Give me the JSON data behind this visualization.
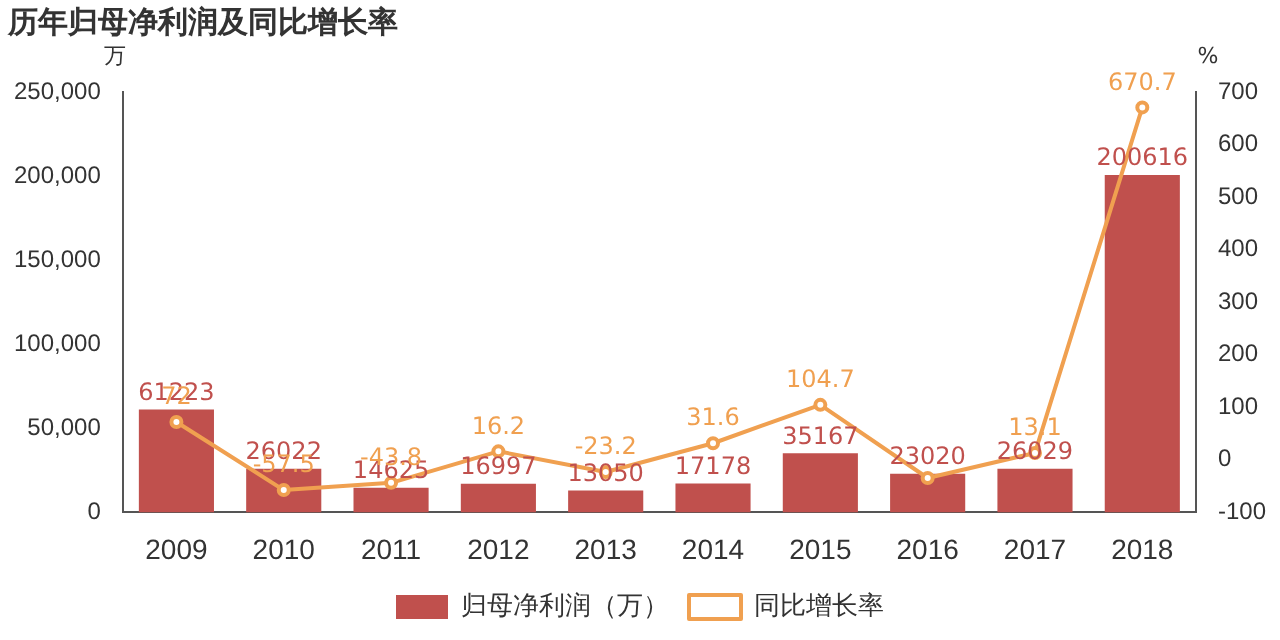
{
  "chart_data": {
    "type": "bar",
    "title": "历年归母净利润及同比增长率",
    "ylabel": "万",
    "y2label": "%",
    "categories": [
      "2009",
      "2010",
      "2011",
      "2012",
      "2013",
      "2014",
      "2015",
      "2016",
      "2017",
      "2018"
    ],
    "series": [
      {
        "name": "归母净利润（万）",
        "color": "#c0504d",
        "values": [
          61223,
          26022,
          14625,
          16997,
          13050,
          17178,
          35167,
          23020,
          26029,
          200616
        ],
        "value_labels": [
          "61223",
          "26022",
          "14625",
          "16997",
          "13050",
          "17178",
          "35167",
          "23020",
          "26029",
          "200616"
        ]
      },
      {
        "name": "同比增长率",
        "type": "line",
        "axis": "y2",
        "color": "#f0a050",
        "values": [
          72,
          -57.5,
          -43.8,
          16.2,
          -23.2,
          31.6,
          104.7,
          -34.5,
          13.1,
          670.7
        ],
        "value_labels": [
          "72",
          "-57.5",
          "-43.8",
          "16.2",
          "-23.2",
          "31.6",
          "104.7",
          null,
          "13.1",
          "670.7"
        ]
      }
    ],
    "ylim": [
      0,
      250000
    ],
    "yticks": [
      0,
      {
        "value": 50000,
        "label": "50,000"
      },
      {
        "value": 100000,
        "label": "100,000"
      },
      {
        "value": 150000,
        "label": "150,000"
      },
      {
        "value": 200000,
        "label": "200,000"
      },
      {
        "value": 250000,
        "label": "250,000"
      }
    ],
    "y2lim": [
      -100,
      700
    ],
    "y2ticks": [
      -100,
      0,
      100,
      200,
      300,
      400,
      500,
      600,
      700
    ],
    "legend": "bottom",
    "marker": "circle",
    "grid": false
  }
}
